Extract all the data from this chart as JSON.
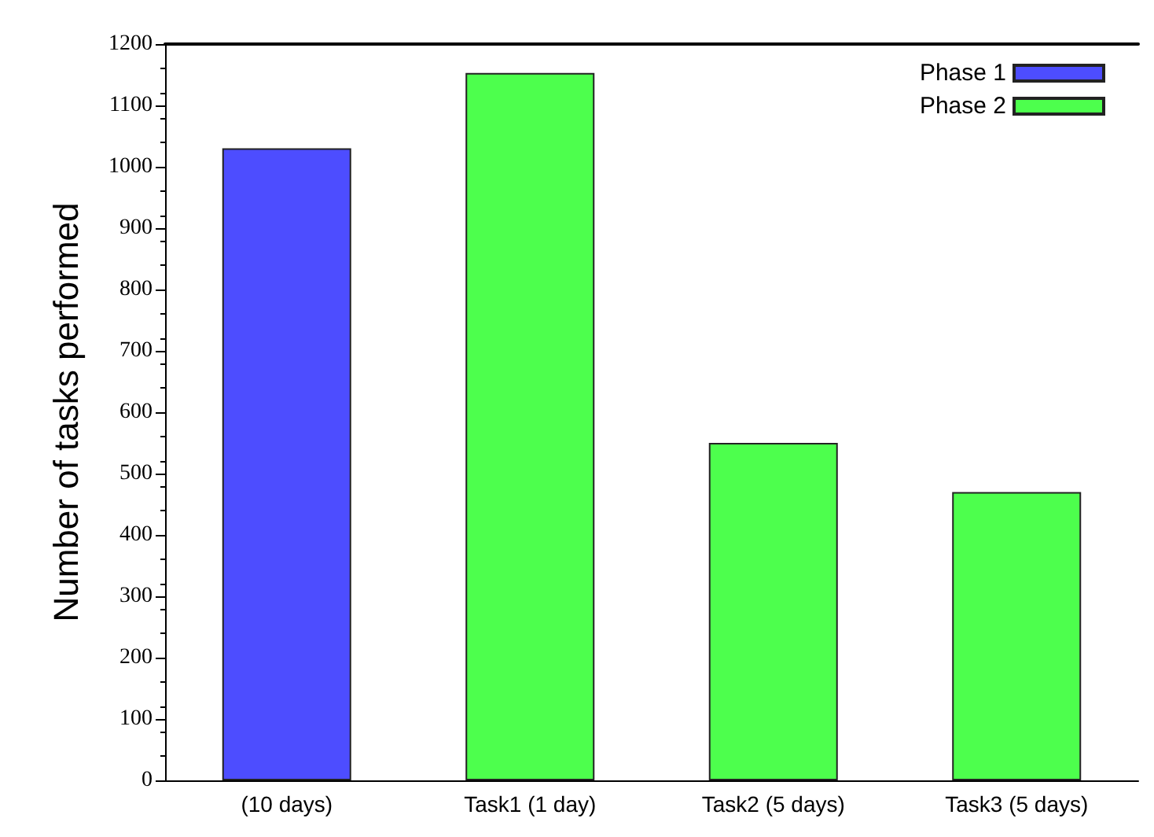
{
  "chart_data": {
    "type": "bar",
    "ylabel": "Number of tasks performed",
    "categories": [
      "(10 days)",
      "Task1 (1 day)",
      "Task2 (5 days)",
      "Task3 (5 days)"
    ],
    "series": [
      {
        "name": "Phase 1",
        "color": "#4d4dff",
        "values": [
          1030,
          null,
          null,
          null
        ]
      },
      {
        "name": "Phase 2",
        "color": "#4dff4d",
        "values": [
          null,
          1153,
          550,
          470
        ]
      }
    ],
    "ylim": [
      0,
      1200
    ],
    "yticks": [
      0,
      100,
      200,
      300,
      400,
      500,
      600,
      700,
      800,
      900,
      1000,
      1100,
      1200
    ],
    "grid": false,
    "legend": "top right"
  }
}
